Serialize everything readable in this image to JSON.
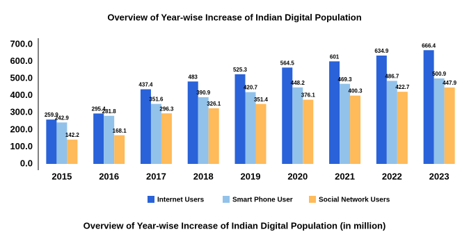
{
  "chart_data": {
    "type": "bar",
    "title": "Overview of Year-wise Increase of Indian Digital Population",
    "caption": "Overview of Year-wise Increase of Indian Digital Population (in million)",
    "categories": [
      "2015",
      "2016",
      "2017",
      "2018",
      "2019",
      "2020",
      "2021",
      "2022",
      "2023"
    ],
    "series": [
      {
        "name": "Internet Users",
        "color": "#2962d9",
        "values": [
          259.9,
          295.4,
          437.4,
          483,
          525.3,
          564.5,
          601,
          634.9,
          666.4
        ]
      },
      {
        "name": "Smart Phone User",
        "color": "#92c2ea",
        "values": [
          242.9,
          281.8,
          351.6,
          390.9,
          420.7,
          448.2,
          469.3,
          486.7,
          500.9
        ]
      },
      {
        "name": "Social Network Users",
        "color": "#ffba5a",
        "values": [
          142.2,
          168.1,
          296.3,
          326.1,
          351.4,
          376.1,
          400.3,
          422.7,
          447.9
        ]
      }
    ],
    "ylim": [
      0,
      700
    ],
    "yticks": [
      {
        "value": 0,
        "label": "0.0"
      },
      {
        "value": 100,
        "label": "100.0"
      },
      {
        "value": 200,
        "label": "200.0"
      },
      {
        "value": 300,
        "label": "300.0"
      },
      {
        "value": 400,
        "label": "400.0"
      },
      {
        "value": 500,
        "label": "500.0"
      },
      {
        "value": 600,
        "label": "600.0"
      },
      {
        "value": 700,
        "label": "700.0"
      }
    ],
    "grid": false,
    "legend": "bottom"
  }
}
